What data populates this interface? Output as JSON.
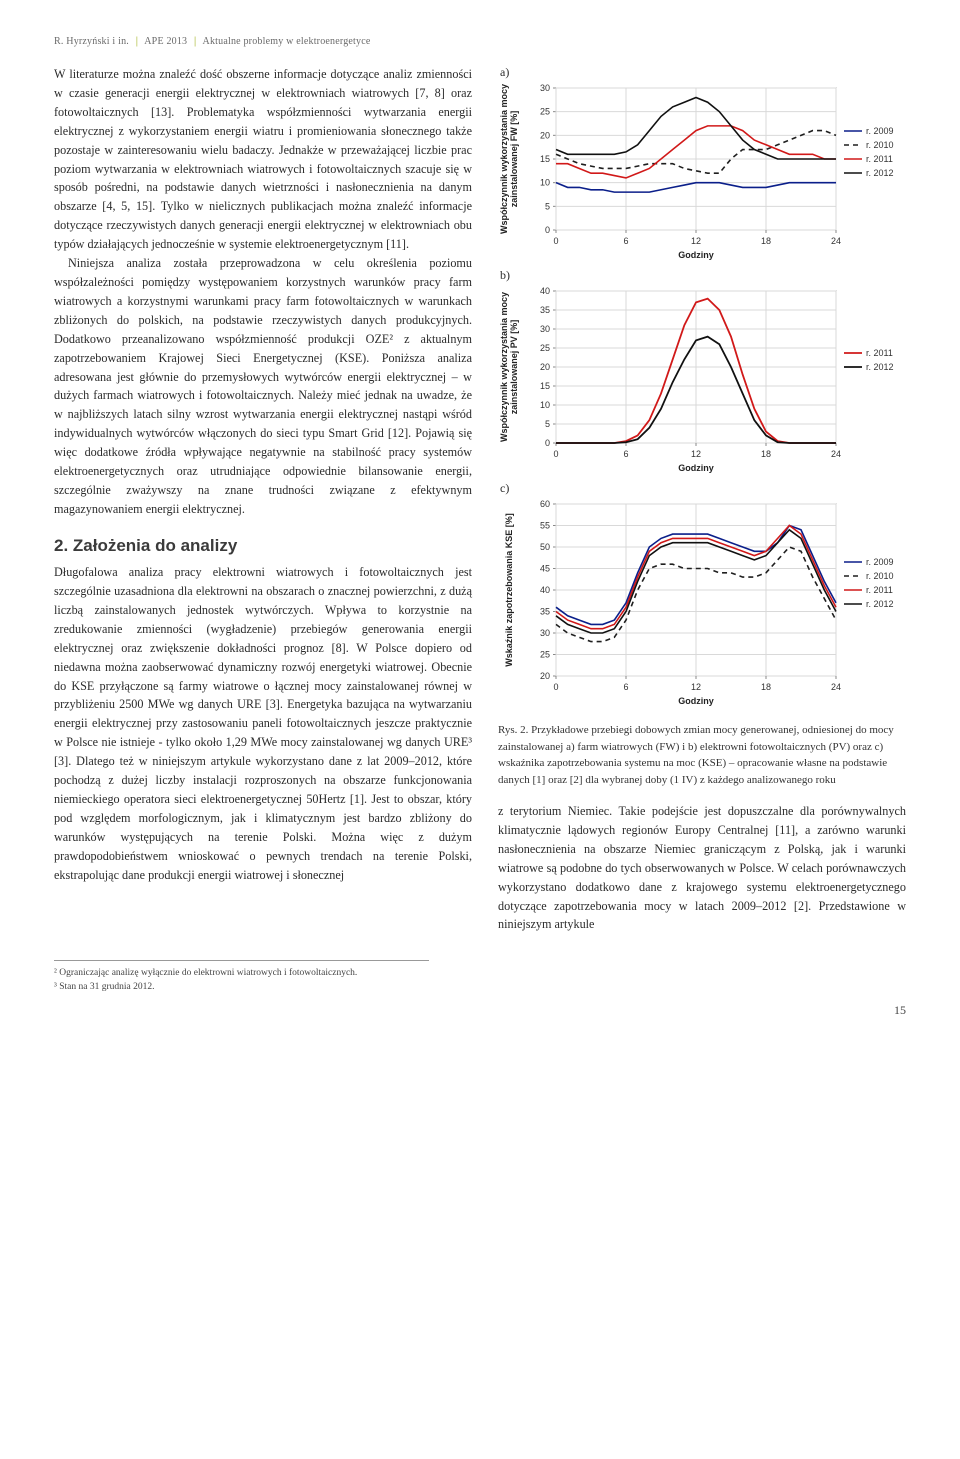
{
  "running_head": {
    "authors": "R. Hyrzyński i in.",
    "conf": "APE 2013",
    "topic": "Aktualne problemy w elektroenergetyce"
  },
  "left_col": {
    "para1": "W literaturze można znaleźć dość obszerne informacje dotyczące analiz zmienności w czasie generacji energii elektrycznej w elektrowniach wiatrowych [7, 8] oraz fotowoltaicznych [13]. Problematyka współzmienności wytwarzania energii elektrycznej z wykorzystaniem energii wiatru i promieniowania słonecznego także pozostaje w zainteresowaniu wielu badaczy. Jednakże w przeważającej liczbie prac poziom wytwarzania w elektrowniach wiatrowych i fotowoltaicznych szacuje się w sposób pośredni, na podstawie danych wietrzności i nasłonecznienia na danym obszarze [4, 5, 15]. Tylko w nielicznych publikacjach można znaleźć informacje dotyczące rzeczywistych danych generacji energii elektrycznej w elektrowniach obu typów działających jednocześnie w systemie elektroenergetycznym [11].",
    "para2": "Niniejsza analiza została przeprowadzona w celu określenia poziomu współzależności pomiędzy występowaniem korzystnych warunków pracy farm wiatrowych a korzystnymi warunkami pracy farm fotowoltaicznych w warunkach zbliżonych do polskich, na podstawie rzeczywistych danych produkcyjnych. Dodatkowo przeanalizowano współzmienność produkcji OZE² z aktualnym zapotrzebowaniem Krajowej Sieci Energetycznej (KSE). Poniższa analiza adresowana jest głównie do przemysłowych wytwórców energii elektrycznej – w dużych farmach wiatrowych i fotowoltaicznych. Należy mieć jednak na uwadze, że w najbliższych latach silny wzrost wytwarzania energii elektrycznej nastąpi wśród indywidualnych wytwórców włączonych do sieci typu Smart Grid [12]. Pojawią się więc dodatkowe źródła wpływające negatywnie na stabilność pracy systemów elektroenergetycznych oraz utrudniające odpowiednie bilansowanie energii, szczególnie zważywszy na znane trudności związane z efektywnym magazynowaniem energii elektrycznej.",
    "section_title": "2. Założenia do analizy",
    "para3": "Długofalowa analiza pracy elektrowni wiatrowych i fotowoltaicznych jest szczególnie uzasadniona dla elektrowni na obszarach o znacznej powierzchni, z dużą liczbą zainstalowanych jednostek wytwórczych. Wpływa to korzystnie na zredukowanie zmienności (wygładzenie) przebiegów generowania energii elektrycznej oraz zwiększenie dokładności prognoz [8]. W Polsce dopiero od niedawna można zaobserwować dynamiczny rozwój energetyki wiatrowej. Obecnie do KSE przyłączone są farmy wiatrowe o łącznej mocy zainstalowanej równej w przybliżeniu 2500 MWe wg danych URE [3]. Energetyka bazująca na wytwarzaniu energii elektrycznej przy zastosowaniu paneli fotowoltaicznych jeszcze praktycznie w Polsce nie istnieje - tylko około 1,29 MWe mocy zainstalowanej wg danych URE³ [3]. Dlatego też w niniejszym artykule wykorzystano dane z lat 2009–2012, które pochodzą z dużej liczby instalacji rozproszonych na obszarze funkcjonowania niemieckiego operatora sieci elektroenergetycznej 50Hertz [1]. Jest to obszar, który pod względem morfologicznym, jak i klimatycznym jest bardzo zbliżony do warunków występujących na terenie Polski. Można więc z dużym prawdopodobieństwem wnioskować o pewnych trendach na terenie Polski, ekstrapolując dane produkcji energii wiatrowej i słonecznej"
  },
  "charts": {
    "a": {
      "label": "a)",
      "type": "line",
      "x": [
        0,
        1,
        2,
        3,
        4,
        5,
        6,
        7,
        8,
        9,
        10,
        11,
        12,
        13,
        14,
        15,
        16,
        17,
        18,
        19,
        20,
        21,
        22,
        23,
        24
      ],
      "ylabel": "Współczynnik wykorzystania mocy\nzainstalowanej FW [%]",
      "xlabel": "Godziny",
      "ylim": [
        0,
        30
      ],
      "ytick_step": 5,
      "xlim": [
        0,
        24
      ],
      "xtick_step": 6,
      "grid_color": "#d9d9d9",
      "background_color": "#ffffff",
      "line_width": 1.6,
      "series": [
        {
          "name": "r. 2009",
          "color": "#0b1f8a",
          "dash": "none",
          "y": [
            10,
            9,
            9,
            8.5,
            8.5,
            8,
            8,
            8,
            8,
            8.5,
            9,
            9.5,
            10,
            10,
            10,
            9.5,
            9,
            9,
            9,
            9.5,
            10,
            10,
            10,
            10,
            10
          ]
        },
        {
          "name": "r. 2010",
          "color": "#1f1f1f",
          "dash": "5,4",
          "y": [
            16,
            15,
            14,
            13.5,
            13,
            13,
            13,
            13.5,
            14,
            14,
            14,
            13,
            12.5,
            12,
            12,
            15,
            17,
            17,
            17,
            18,
            19,
            20,
            21,
            21,
            20
          ]
        },
        {
          "name": "r. 2011",
          "color": "#d11919",
          "dash": "none",
          "y": [
            14,
            14,
            13,
            12,
            12,
            11.5,
            11,
            12,
            13,
            15,
            17,
            19,
            21,
            22,
            22,
            22,
            21,
            19,
            18,
            17,
            16,
            16,
            16,
            15,
            15
          ]
        },
        {
          "name": "r. 2012",
          "color": "#111111",
          "dash": "none",
          "y": [
            17,
            16,
            16,
            16,
            16,
            16,
            16.5,
            18,
            21,
            24,
            26,
            27,
            28,
            27,
            25,
            22,
            19,
            17,
            16,
            15,
            15,
            15,
            15,
            15,
            15
          ]
        }
      ],
      "legend": [
        "r. 2009",
        "r. 2010",
        "r. 2011",
        "r. 2012"
      ]
    },
    "b": {
      "label": "b)",
      "type": "line",
      "x": [
        0,
        1,
        2,
        3,
        4,
        5,
        6,
        7,
        8,
        9,
        10,
        11,
        12,
        13,
        14,
        15,
        16,
        17,
        18,
        19,
        20,
        21,
        22,
        23,
        24
      ],
      "ylabel": "Współczynnik wykorzystania mocy\nzainstalowanej PV [%]",
      "xlabel": "Godziny",
      "ylim": [
        0,
        40
      ],
      "ytick_step": 5,
      "xlim": [
        0,
        24
      ],
      "xtick_step": 6,
      "grid_color": "#d9d9d9",
      "background_color": "#ffffff",
      "line_width": 1.8,
      "series": [
        {
          "name": "r. 2011",
          "color": "#d11919",
          "dash": "none",
          "y": [
            0,
            0,
            0,
            0,
            0,
            0,
            0.5,
            2,
            6,
            13,
            22,
            31,
            37,
            38,
            35,
            28,
            18,
            9,
            3,
            0.5,
            0,
            0,
            0,
            0,
            0
          ]
        },
        {
          "name": "r. 2012",
          "color": "#111111",
          "dash": "none",
          "y": [
            0,
            0,
            0,
            0,
            0,
            0,
            0.2,
            1,
            4,
            9,
            16,
            22,
            27,
            28,
            26,
            20,
            13,
            6,
            2,
            0.2,
            0,
            0,
            0,
            0,
            0
          ]
        }
      ],
      "legend": [
        "r. 2011",
        "r. 2012"
      ]
    },
    "c": {
      "label": "c)",
      "type": "line",
      "x": [
        0,
        1,
        2,
        3,
        4,
        5,
        6,
        7,
        8,
        9,
        10,
        11,
        12,
        13,
        14,
        15,
        16,
        17,
        18,
        19,
        20,
        21,
        22,
        23,
        24
      ],
      "ylabel": "Wskaźnik zapotrzebowania KSE [%]",
      "xlabel": "Godziny",
      "ylim": [
        20,
        60
      ],
      "ytick_step": 5,
      "xlim": [
        0,
        24
      ],
      "xtick_step": 6,
      "grid_color": "#d9d9d9",
      "background_color": "#ffffff",
      "line_width": 1.6,
      "series": [
        {
          "name": "r. 2009",
          "color": "#0b1f8a",
          "dash": "none",
          "y": [
            36,
            34,
            33,
            32,
            32,
            33,
            37,
            44,
            50,
            52,
            53,
            53,
            53,
            53,
            52,
            51,
            50,
            49,
            49,
            51,
            55,
            54,
            48,
            42,
            37
          ]
        },
        {
          "name": "r. 2010",
          "color": "#1f1f1f",
          "dash": "5,4",
          "y": [
            32,
            30,
            29,
            28,
            28,
            29,
            33,
            40,
            45,
            46,
            46,
            45,
            45,
            45,
            44,
            44,
            43,
            43,
            44,
            47,
            50,
            49,
            43,
            38,
            33
          ]
        },
        {
          "name": "r. 2011",
          "color": "#d11919",
          "dash": "none",
          "y": [
            35,
            33,
            32,
            31,
            31,
            32,
            36,
            43,
            49,
            51,
            52,
            52,
            52,
            52,
            51,
            50,
            49,
            48,
            49,
            52,
            55,
            53,
            47,
            41,
            36
          ]
        },
        {
          "name": "r. 2012",
          "color": "#111111",
          "dash": "none",
          "y": [
            34,
            32,
            31,
            30,
            30,
            31,
            35,
            42,
            48,
            50,
            51,
            51,
            51,
            51,
            50,
            49,
            48,
            47,
            48,
            51,
            54,
            52,
            46,
            40,
            35
          ]
        }
      ],
      "legend": [
        "r. 2009",
        "r. 2010",
        "r. 2011",
        "r. 2012"
      ]
    }
  },
  "fig_caption": "Rys. 2. Przykładowe przebiegi dobowych zmian mocy generowanej, odniesionej do mocy zainstalowanej a) farm wiatrowych (FW) i b) elektrowni fotowoltaicznych (PV) oraz c) wskaźnika zapotrzebowania systemu na moc (KSE) – opracowanie własne na podstawie danych [1] oraz [2] dla wybranej doby (1 IV) z każdego analizowanego roku",
  "right_bottom_para": "z terytorium Niemiec. Takie podejście jest dopuszczalne dla porównywalnych klimatycznie lądowych regionów Europy Centralnej [11], a zarówno warunki nasłonecznienia na obszarze Niemiec graniczącym z Polską, jak i warunki wiatrowe są podobne do tych obserwowanych w Polsce. W celach porównawczych wykorzystano dodatkowo dane z krajowego systemu elektroenergetycznego dotyczące zapotrzebowania mocy w latach 2009–2012 [2]. Przedstawione w niniejszym artykule",
  "footnotes": {
    "f2": "² Ograniczając analizę wyłącznie do elektrowni wiatrowych i fotowoltaicznych.",
    "f3": "³ Stan na 31 grudnia 2012."
  },
  "page_number": "15"
}
